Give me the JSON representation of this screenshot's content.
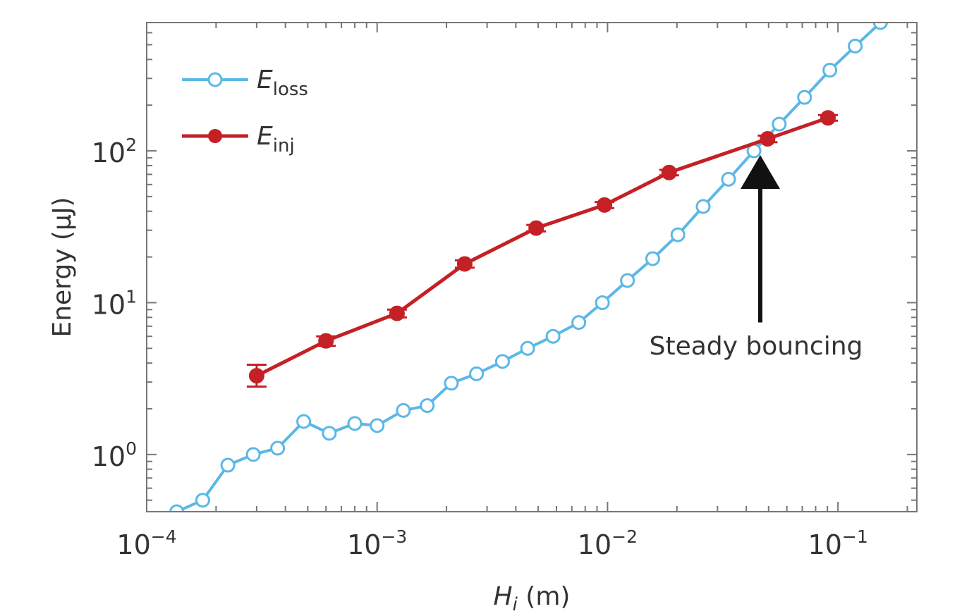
{
  "chart_data": {
    "type": "line",
    "xlabel": {
      "main": "H",
      "sub": "i",
      "unit": " (m)"
    },
    "ylabel": "Energy (μJ)",
    "x_scale": "log",
    "y_scale": "log",
    "xlim": [
      0.0001,
      0.22
    ],
    "ylim": [
      0.42,
      700
    ],
    "x_ticks": [
      {
        "value": 0.0001,
        "base": "10",
        "exp": "−4"
      },
      {
        "value": 0.001,
        "base": "10",
        "exp": "−3"
      },
      {
        "value": 0.01,
        "base": "10",
        "exp": "−2"
      },
      {
        "value": 0.1,
        "base": "10",
        "exp": "−1"
      }
    ],
    "y_ticks": [
      {
        "value": 1,
        "base": "10",
        "exp": "0"
      },
      {
        "value": 10,
        "base": "10",
        "exp": "1"
      },
      {
        "value": 100,
        "base": "10",
        "exp": "2"
      }
    ],
    "grid": false,
    "legend_position": "top-left",
    "series": [
      {
        "name": {
          "main": "E",
          "sub": "loss"
        },
        "color": "#5bb8e6",
        "marker": "open-circle",
        "points": [
          [
            0.000135,
            0.42
          ],
          [
            0.000175,
            0.5
          ],
          [
            0.000225,
            0.85
          ],
          [
            0.00029,
            1.0
          ],
          [
            0.00037,
            1.1
          ],
          [
            0.00048,
            1.65
          ],
          [
            0.00062,
            1.38
          ],
          [
            0.0008,
            1.6
          ],
          [
            0.001,
            1.55
          ],
          [
            0.0013,
            1.95
          ],
          [
            0.00165,
            2.1
          ],
          [
            0.0021,
            2.95
          ],
          [
            0.0027,
            3.4
          ],
          [
            0.0035,
            4.1
          ],
          [
            0.0045,
            5.0
          ],
          [
            0.0058,
            6.0
          ],
          [
            0.0075,
            7.4
          ],
          [
            0.0095,
            10.0
          ],
          [
            0.0122,
            14.0
          ],
          [
            0.0157,
            19.5
          ],
          [
            0.0202,
            28.0
          ],
          [
            0.026,
            43.0
          ],
          [
            0.0335,
            65.0
          ],
          [
            0.0432,
            100.0
          ],
          [
            0.0556,
            150.0
          ],
          [
            0.0716,
            225.0
          ],
          [
            0.0922,
            340.0
          ],
          [
            0.1188,
            490.0
          ],
          [
            0.1529,
            700.0
          ]
        ]
      },
      {
        "name": {
          "main": "E",
          "sub": "inj"
        },
        "color": "#c42026",
        "marker": "filled-circle",
        "points": [
          [
            0.0003,
            3.3
          ],
          [
            0.0006,
            5.6
          ],
          [
            0.00122,
            8.5
          ],
          [
            0.0024,
            18.0
          ],
          [
            0.0049,
            31.0
          ],
          [
            0.0097,
            44.0
          ],
          [
            0.0185,
            72.0
          ],
          [
            0.0495,
            120.0
          ],
          [
            0.0905,
            165.0
          ]
        ],
        "error_bars": [
          [
            0.0003,
            2.8,
            3.9
          ],
          [
            0.0006,
            5.2,
            6.0
          ],
          [
            0.00122,
            8.0,
            9.0
          ],
          [
            0.0024,
            17.0,
            19.0
          ],
          [
            0.0049,
            29.5,
            32.5
          ],
          [
            0.0097,
            42.0,
            46.0
          ],
          [
            0.0185,
            69.0,
            75.0
          ],
          [
            0.0495,
            114.0,
            126.0
          ],
          [
            0.0905,
            158.0,
            172.0
          ]
        ]
      }
    ],
    "annotations": [
      {
        "text": "Steady bouncing",
        "arrow_x": 0.046,
        "arrow_tip_y": 100,
        "arrow_tail_y": 10
      }
    ]
  }
}
